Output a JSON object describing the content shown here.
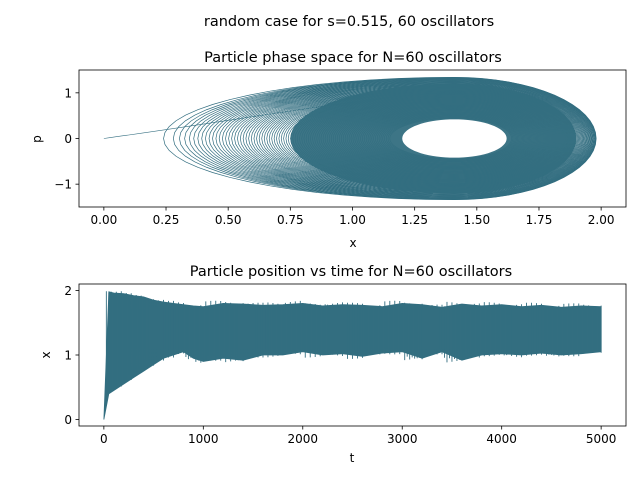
{
  "suptitle": "random case for s=0.515, 60 oscillators",
  "line_color": "#336e80",
  "chart_data": [
    {
      "type": "line",
      "title": "Particle phase space for N=60 oscillators",
      "xlabel": "x",
      "ylabel": "p",
      "xlim": [
        -0.1,
        2.1
      ],
      "ylim": [
        -1.5,
        1.5
      ],
      "xticks": [
        0.0,
        0.25,
        0.5,
        0.75,
        1.0,
        1.25,
        1.5,
        1.75,
        2.0
      ],
      "xtick_labels": [
        "0.00",
        "0.25",
        "0.50",
        "0.75",
        "1.00",
        "1.25",
        "1.50",
        "1.75",
        "2.00"
      ],
      "yticks": [
        -1,
        0,
        1
      ],
      "ytick_labels": [
        "−1",
        "0",
        "1"
      ],
      "grid": false,
      "series": [
        {
          "description_points": {
            "start": [
              0.0,
              0.0
            ],
            "x_min_after_start": 0.24,
            "x_max": 1.98,
            "p_range": [
              -1.34,
              1.34
            ],
            "center_x": 1.41,
            "hole_x_range": [
              1.2,
              1.62
            ],
            "hole_p_range": [
              -0.42,
              0.42
            ]
          }
        }
      ]
    },
    {
      "type": "line",
      "title": "Particle position vs time for N=60 oscillators",
      "xlabel": "t",
      "ylabel": "x",
      "xlim": [
        -250,
        5250
      ],
      "ylim": [
        -0.1,
        2.1
      ],
      "xticks": [
        0,
        1000,
        2000,
        3000,
        4000,
        5000
      ],
      "xtick_labels": [
        "0",
        "1000",
        "2000",
        "3000",
        "4000",
        "5000"
      ],
      "yticks": [
        0,
        1,
        2
      ],
      "ytick_labels": [
        "0",
        "1",
        "2"
      ],
      "grid": false,
      "series": [
        {
          "x": [
            0,
            50,
            100,
            200,
            300,
            400,
            500,
            600,
            700,
            800,
            900,
            1000,
            1200,
            1400,
            1600,
            1800,
            2000,
            2200,
            2400,
            2600,
            2800,
            3000,
            3200,
            3400,
            3600,
            3800,
            4000,
            4200,
            4400,
            4600,
            4800,
            5000
          ],
          "upper": [
            0.0,
            1.98,
            1.96,
            1.95,
            1.92,
            1.9,
            1.85,
            1.82,
            1.8,
            1.78,
            1.76,
            1.75,
            1.8,
            1.79,
            1.77,
            1.78,
            1.8,
            1.76,
            1.78,
            1.77,
            1.75,
            1.8,
            1.78,
            1.74,
            1.79,
            1.76,
            1.78,
            1.75,
            1.77,
            1.74,
            1.76,
            1.75
          ],
          "lower": [
            0.0,
            0.4,
            0.45,
            0.55,
            0.65,
            0.75,
            0.85,
            0.95,
            1.0,
            1.05,
            0.95,
            0.9,
            0.95,
            0.92,
            1.0,
            1.0,
            1.05,
            1.0,
            1.02,
            0.98,
            1.03,
            1.05,
            0.95,
            1.05,
            0.92,
            1.0,
            1.02,
            1.0,
            1.03,
            1.0,
            1.02,
            1.05
          ]
        }
      ]
    }
  ]
}
